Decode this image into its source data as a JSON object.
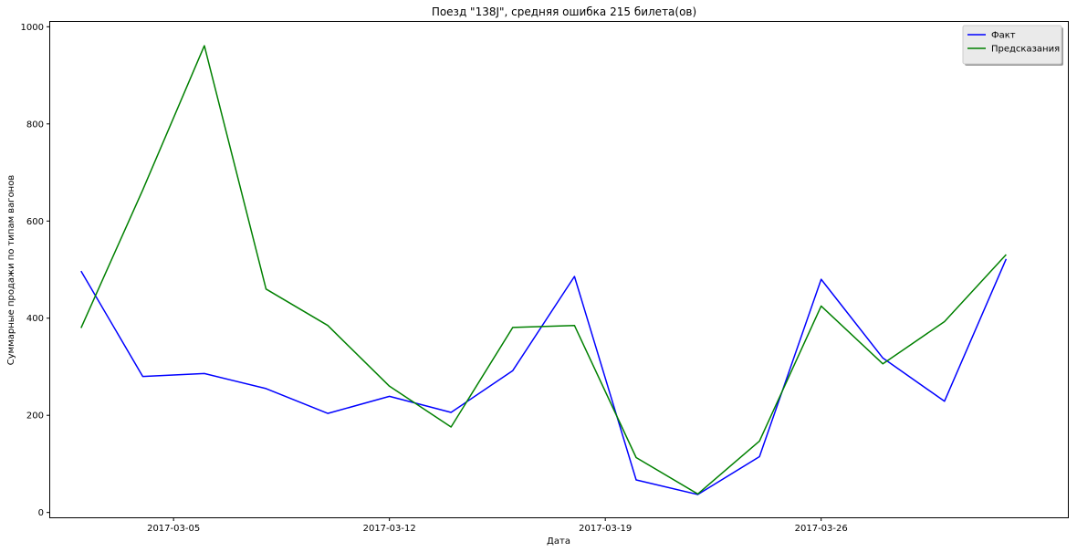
{
  "chart_data": {
    "type": "line",
    "title": "Поезд \"138J\", средняя ошибка 215 билета(ов)",
    "xlabel": "Дата",
    "ylabel": "Суммарные продажи по типам вагонов",
    "x": [
      "2017-03-02",
      "2017-03-04",
      "2017-03-06",
      "2017-03-08",
      "2017-03-10",
      "2017-03-12",
      "2017-03-14",
      "2017-03-16",
      "2017-03-18",
      "2017-03-20",
      "2017-03-22",
      "2017-03-24",
      "2017-03-26",
      "2017-03-28",
      "2017-03-30",
      "2017-04-01"
    ],
    "xticks": [
      "2017-03-05",
      "2017-03-12",
      "2017-03-19",
      "2017-03-26"
    ],
    "xlim": [
      "2017-03-01",
      "2017-04-03"
    ],
    "yticks": [
      0,
      200,
      400,
      600,
      800,
      1000
    ],
    "ylim": [
      -10,
      1010
    ],
    "grid": false,
    "legend_position": "top-right",
    "series": [
      {
        "name": "Факт",
        "color": "#0000ff",
        "values": [
          497,
          280,
          286,
          255,
          204,
          239,
          206,
          292,
          486,
          67,
          37,
          115,
          480,
          318,
          229,
          522
        ]
      },
      {
        "name": "Предсказания",
        "color": "#008000",
        "values": [
          380,
          664,
          961,
          460,
          385,
          260,
          176,
          381,
          385,
          113,
          38,
          147,
          425,
          306,
          393,
          531
        ]
      }
    ]
  }
}
